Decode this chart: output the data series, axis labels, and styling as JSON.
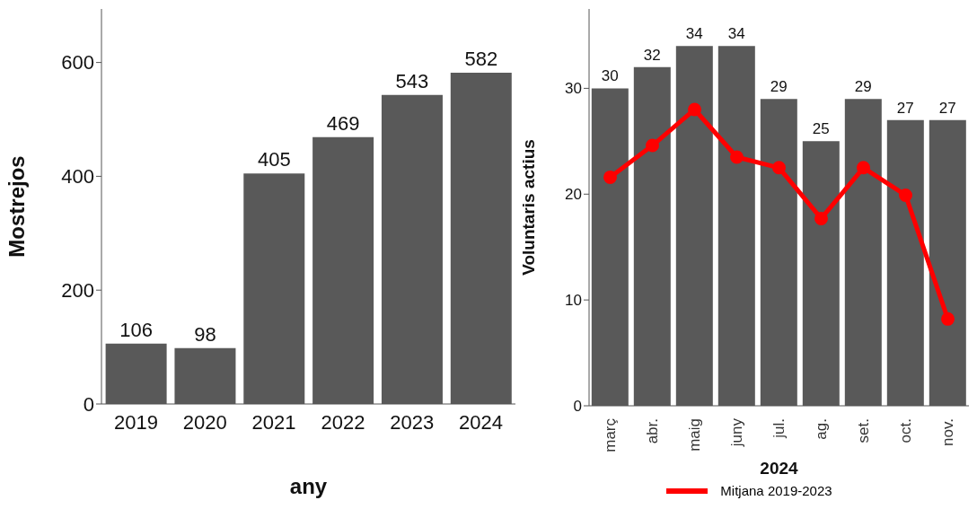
{
  "chart_data": [
    {
      "type": "bar",
      "categories": [
        "2019",
        "2020",
        "2021",
        "2022",
        "2023",
        "2024"
      ],
      "xlabel": "any",
      "ylabel": "Mostrejos",
      "series": [
        {
          "color": "#595959",
          "values": [
            106,
            98,
            405,
            469,
            543,
            582
          ]
        }
      ],
      "ylim": [
        0,
        694
      ],
      "yticks": [
        0,
        200,
        400,
        600
      ],
      "data_labels": true,
      "grid": false,
      "legend": false
    },
    {
      "type": "bar",
      "categories": [
        "març",
        "abr.",
        "maig",
        "juny",
        "jul.",
        "ag.",
        "set.",
        "oct.",
        "nov."
      ],
      "xlabel": "2024",
      "ylabel": "Voluntaris actius",
      "series": [
        {
          "color": "#595959",
          "values": [
            30,
            32,
            34,
            34,
            29,
            25,
            29,
            27,
            27
          ],
          "value_labels": [
            "30",
            "32",
            "34",
            "34",
            "29",
            "25",
            "29",
            "27",
            "27"
          ]
        },
        {
          "type": "line",
          "name": "Mitjana 2019-2023",
          "color": "#ff0000",
          "values": [
            21.6,
            24.6,
            28.0,
            23.5,
            22.5,
            17.7,
            22.5,
            19.9,
            8.2
          ]
        }
      ],
      "ylim": [
        0,
        37.5
      ],
      "yticks": [
        0,
        10,
        20,
        30
      ],
      "marker": "circle",
      "line_style": "solid",
      "grid": false,
      "legend": "bottom"
    }
  ]
}
